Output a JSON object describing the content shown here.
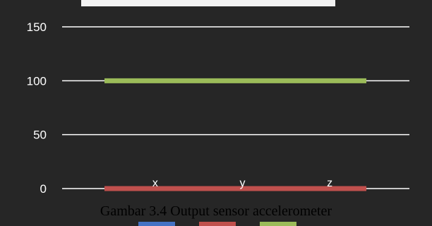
{
  "caption": "Gambar 3.4 Output sensor accelerometer",
  "chart_data": {
    "type": "line",
    "title": "",
    "xlabel": "",
    "ylabel": "",
    "categories": [
      "x",
      "y",
      "z"
    ],
    "ylim": [
      0,
      150
    ],
    "yticks": [
      0,
      50,
      100,
      150
    ],
    "grid": true,
    "legend": "bottom",
    "series": [
      {
        "color": "#4472c4",
        "values": [
          0,
          0,
          0
        ]
      },
      {
        "color": "#c0504d",
        "values": [
          0,
          0,
          0
        ]
      },
      {
        "color": "#9bbb59",
        "values": [
          100,
          100,
          100
        ]
      }
    ],
    "colors": {
      "background": "#262626",
      "grid": "#ffffff",
      "text": "#ffffff"
    }
  }
}
